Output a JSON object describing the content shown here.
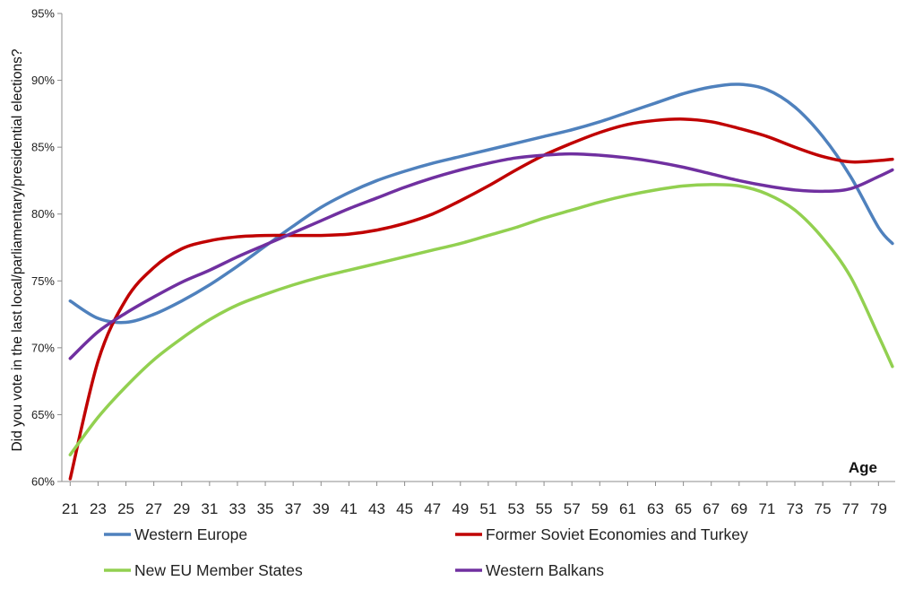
{
  "chart_data": {
    "type": "line",
    "title": "",
    "xlabel": "Age",
    "ylabel": "Did you vote in the last local/parliamentary/presidential elections?",
    "x": [
      21,
      23,
      25,
      27,
      29,
      31,
      33,
      35,
      37,
      39,
      41,
      43,
      45,
      47,
      49,
      51,
      53,
      55,
      57,
      59,
      61,
      63,
      65,
      67,
      69,
      71,
      73,
      75,
      77,
      79,
      80
    ],
    "xticks": [
      "21",
      "23",
      "25",
      "27",
      "29",
      "31",
      "33",
      "35",
      "37",
      "39",
      "41",
      "43",
      "45",
      "47",
      "49",
      "51",
      "53",
      "55",
      "57",
      "59",
      "61",
      "63",
      "65",
      "67",
      "69",
      "71",
      "73",
      "75",
      "77",
      "79"
    ],
    "yticks": [
      "60%",
      "65%",
      "70%",
      "75%",
      "80%",
      "85%",
      "90%",
      "95%"
    ],
    "ylim": [
      60,
      95
    ],
    "xlim": [
      20.4,
      80.2
    ],
    "grid": false,
    "legend_position": "bottom",
    "series": [
      {
        "name": "Western Europe",
        "color": "#4F81BD",
        "values": [
          73.5,
          72.2,
          71.9,
          72.5,
          73.5,
          74.7,
          76.1,
          77.6,
          79.1,
          80.5,
          81.6,
          82.5,
          83.2,
          83.8,
          84.3,
          84.8,
          85.3,
          85.8,
          86.3,
          86.9,
          87.6,
          88.3,
          89.0,
          89.5,
          89.7,
          89.3,
          88.0,
          85.8,
          82.8,
          79.0,
          77.8
        ]
      },
      {
        "name": "Former Soviet Economies and Turkey",
        "color": "#C00000",
        "values": [
          60.2,
          69.0,
          73.6,
          76.0,
          77.4,
          78.0,
          78.3,
          78.4,
          78.4,
          78.4,
          78.5,
          78.8,
          79.3,
          80.0,
          81.0,
          82.1,
          83.3,
          84.4,
          85.3,
          86.1,
          86.7,
          87.0,
          87.1,
          86.9,
          86.4,
          85.8,
          85.0,
          84.3,
          83.9,
          84.0,
          84.1
        ]
      },
      {
        "name": "New EU Member States",
        "color": "#92D050",
        "values": [
          62.0,
          64.8,
          67.1,
          69.1,
          70.7,
          72.1,
          73.2,
          74.0,
          74.7,
          75.3,
          75.8,
          76.3,
          76.8,
          77.3,
          77.8,
          78.4,
          79.0,
          79.7,
          80.3,
          80.9,
          81.4,
          81.8,
          82.1,
          82.2,
          82.1,
          81.5,
          80.3,
          78.2,
          75.3,
          70.9,
          68.6
        ]
      },
      {
        "name": "Western Balkans",
        "color": "#7030A0",
        "values": [
          69.2,
          71.2,
          72.6,
          73.8,
          74.9,
          75.8,
          76.8,
          77.7,
          78.6,
          79.5,
          80.4,
          81.2,
          82.0,
          82.7,
          83.3,
          83.8,
          84.2,
          84.4,
          84.5,
          84.4,
          84.2,
          83.9,
          83.5,
          83.0,
          82.5,
          82.1,
          81.8,
          81.7,
          81.9,
          82.8,
          83.3
        ]
      }
    ]
  }
}
